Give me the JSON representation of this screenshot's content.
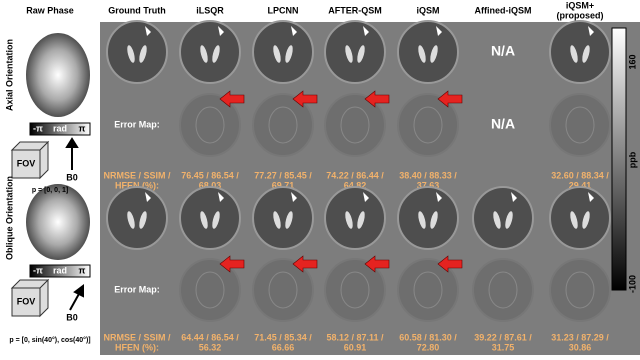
{
  "header": {
    "columns": [
      "Raw Phase",
      "Ground Truth",
      "iLSQR",
      "LPCNN",
      "AFTER-QSM",
      "iQSM",
      "Affined-iQSM",
      "iQSM+"
    ],
    "proposed_note": "(proposed)"
  },
  "rows": [
    {
      "label": "Axial Orientation",
      "vector": "p = [0, 0, 1]",
      "na": [
        "N/A",
        "N/A"
      ],
      "error_label": "Error Map:",
      "metric_label": [
        "NRMSE / SSIM /",
        "HFEN (%):"
      ],
      "metrics": [
        [
          "76.45 / 86.54 /",
          "68.03"
        ],
        [
          "77.27 / 85.45 /",
          "69.71"
        ],
        [
          "74.22 / 86.44 /",
          "64.82"
        ],
        [
          "38.40 / 88.33 /",
          "37.63"
        ],
        [
          "32.60 / 88.34 /",
          "29.41"
        ]
      ]
    },
    {
      "label": "Oblique Orientation",
      "vector": "p = [0, sin(40°), cos(40°)]",
      "error_label": "Error Map:",
      "metric_label": [
        "NRMSE / SSIM /",
        "HFEN (%):"
      ],
      "metrics": [
        [
          "64.44 / 86.54 /",
          "56.32"
        ],
        [
          "71.45 / 85.34 /",
          "66.66"
        ],
        [
          "58.12 / 87.11 /",
          "60.91"
        ],
        [
          "60.58 / 81.30 /",
          "72.80"
        ],
        [
          "39.22 / 87.61 /",
          "31.75"
        ],
        [
          "31.23 / 87.29 /",
          "30.86"
        ]
      ]
    }
  ],
  "phase_scale": [
    "-π",
    "rad",
    "π"
  ],
  "fov": "FOV",
  "b0": "B0",
  "colorbar": {
    "max": "160",
    "min": "-100",
    "unit": "ppb"
  }
}
